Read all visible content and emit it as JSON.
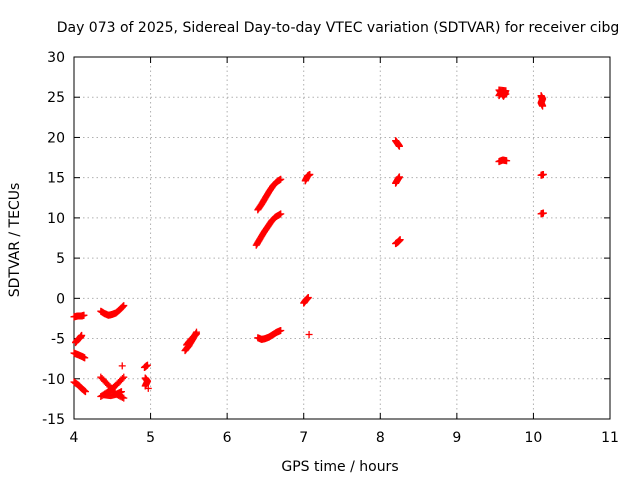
{
  "chart_data": {
    "type": "scatter",
    "title": "Day 073 of 2025, Sidereal Day-to-day VTEC variation (SDTVAR) for receiver cibg",
    "xlabel": "GPS time / hours",
    "ylabel": "SDTVAR / TECUs",
    "xlim": [
      4,
      11
    ],
    "ylim": [
      -15,
      30
    ],
    "xticks": [
      4,
      5,
      6,
      7,
      8,
      9,
      10,
      11
    ],
    "yticks": [
      -15,
      -10,
      -5,
      0,
      5,
      10,
      15,
      20,
      25,
      30
    ],
    "grid": true,
    "marker": "plus",
    "color": "#ff0000",
    "segments": [
      {
        "x": [
          4.0,
          4.05,
          4.1,
          4.13
        ],
        "y": [
          -2.3,
          -2.2,
          -2.2,
          -2.1
        ]
      },
      {
        "x": [
          4.02,
          4.05,
          4.08,
          4.1
        ],
        "y": [
          -5.5,
          -5.1,
          -4.9,
          -4.6
        ]
      },
      {
        "x": [
          4.0,
          4.05,
          4.1,
          4.14
        ],
        "y": [
          -6.8,
          -7.0,
          -7.2,
          -7.4
        ]
      },
      {
        "x": [
          4.0,
          4.06,
          4.1,
          4.15
        ],
        "y": [
          -10.4,
          -10.8,
          -11.2,
          -11.6
        ]
      },
      {
        "x": [
          4.35,
          4.4,
          4.45,
          4.5,
          4.55,
          4.6,
          4.65
        ],
        "y": [
          -1.6,
          -1.9,
          -2.1,
          -2.0,
          -1.8,
          -1.4,
          -0.9
        ]
      },
      {
        "x": [
          4.35,
          4.45,
          4.55,
          4.65
        ],
        "y": [
          -12.2,
          -11.6,
          -10.8,
          -9.8
        ]
      },
      {
        "x": [
          4.35,
          4.45,
          4.55,
          4.65
        ],
        "y": [
          -9.8,
          -10.8,
          -11.9,
          -12.4
        ]
      },
      {
        "x": [
          4.4,
          4.48,
          4.56,
          4.62
        ],
        "y": [
          -12.0,
          -12.1,
          -11.9,
          -11.6
        ]
      },
      {
        "x": [
          4.63
        ],
        "y": [
          -8.4
        ]
      },
      {
        "x": [
          4.92,
          4.96
        ],
        "y": [
          -8.6,
          -8.3
        ]
      },
      {
        "x": [
          4.93,
          4.96,
          4.93
        ],
        "y": [
          -9.9,
          -10.3,
          -10.9
        ]
      },
      {
        "x": [
          4.97
        ],
        "y": [
          -11.2
        ]
      },
      {
        "x": [
          5.45,
          5.5,
          5.55,
          5.6
        ],
        "y": [
          -6.5,
          -5.9,
          -5.1,
          -4.2
        ]
      },
      {
        "x": [
          5.47,
          5.52,
          5.57,
          5.6
        ],
        "y": [
          -5.8,
          -5.2,
          -4.7,
          -4.4
        ]
      },
      {
        "x": [
          6.4,
          6.45,
          6.5,
          6.55,
          6.6,
          6.65,
          6.7
        ],
        "y": [
          11.0,
          11.7,
          12.5,
          13.3,
          14.0,
          14.5,
          14.8
        ]
      },
      {
        "x": [
          6.38,
          6.43,
          6.48,
          6.53,
          6.58,
          6.63,
          6.7
        ],
        "y": [
          6.6,
          7.4,
          8.2,
          8.9,
          9.6,
          10.1,
          10.5
        ]
      },
      {
        "x": [
          6.4,
          6.45,
          6.5,
          6.55,
          6.6,
          6.65,
          6.7
        ],
        "y": [
          -4.9,
          -5.1,
          -5.0,
          -4.8,
          -4.5,
          -4.2,
          -4.0
        ]
      },
      {
        "x": [
          7.02,
          7.05,
          7.08
        ],
        "y": [
          14.6,
          15.2,
          15.4
        ]
      },
      {
        "x": [
          7.0,
          7.03,
          7.06
        ],
        "y": [
          -0.6,
          -0.2,
          0.1
        ]
      },
      {
        "x": [
          7.07
        ],
        "y": [
          -4.5
        ]
      },
      {
        "x": [
          8.2,
          8.23,
          8.25
        ],
        "y": [
          19.6,
          19.2,
          18.9
        ]
      },
      {
        "x": [
          8.2,
          8.23,
          8.25
        ],
        "y": [
          14.3,
          14.8,
          15.1
        ]
      },
      {
        "x": [
          8.2,
          8.23,
          8.26
        ],
        "y": [
          6.8,
          7.0,
          7.3
        ]
      },
      {
        "x": [
          9.55,
          9.58,
          9.61,
          9.64,
          9.55,
          9.6,
          9.64
        ],
        "y": [
          25.2,
          25.6,
          25.1,
          25.8,
          25.9,
          25.3,
          25.4
        ]
      },
      {
        "x": [
          9.55,
          9.6,
          9.65
        ],
        "y": [
          17.0,
          17.2,
          17.1
        ]
      },
      {
        "x": [
          10.1,
          10.12,
          10.1,
          10.12
        ],
        "y": [
          25.2,
          24.8,
          24.3,
          23.9
        ]
      },
      {
        "x": [
          10.1,
          10.13
        ],
        "y": [
          15.3,
          15.4
        ]
      },
      {
        "x": [
          10.1,
          10.13
        ],
        "y": [
          10.5,
          10.6
        ]
      }
    ]
  }
}
